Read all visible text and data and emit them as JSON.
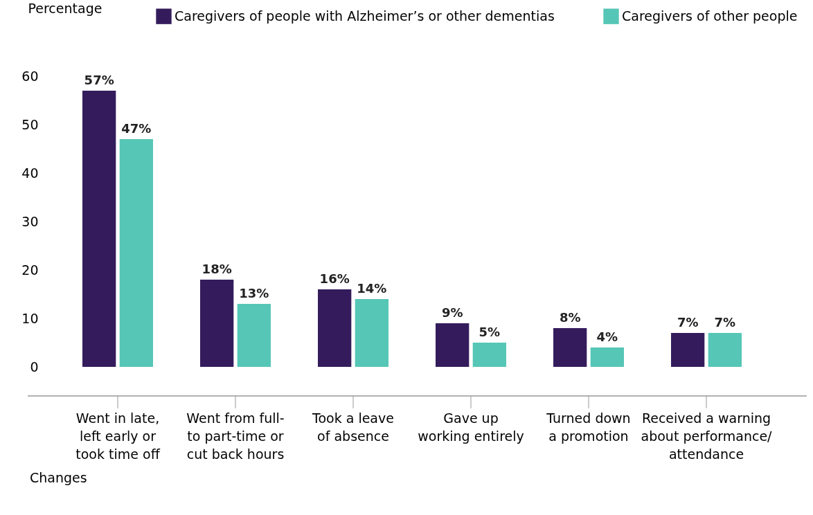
{
  "chart_data": {
    "type": "bar",
    "ylabel": "Percentage",
    "xlabel": "Changes",
    "categories": [
      "Went in late,\nleft early or\ntook time off",
      "Went from full-\nto part-time or\ncut back hours",
      "Took a leave\nof absence",
      "Gave up\nworking entirely",
      "Turned down\na promotion",
      "Received a warning\nabout performance/\nattendance"
    ],
    "series": [
      {
        "name": "Caregivers of people with Alzheimer’s or other dementias",
        "color": "#341c5c",
        "values": [
          57,
          18,
          16,
          9,
          8,
          7
        ],
        "value_labels": [
          "57%",
          "18%",
          "16%",
          "9%",
          "8%",
          "7%"
        ]
      },
      {
        "name": "Caregivers of other people",
        "color": "#56c6b6",
        "values": [
          47,
          13,
          14,
          5,
          4,
          7
        ],
        "value_labels": [
          "47%",
          "13%",
          "14%",
          "5%",
          "4%",
          "7%"
        ]
      }
    ],
    "ylim": [
      0,
      60
    ],
    "yticks": [
      0,
      10,
      20,
      30,
      40,
      50,
      60
    ],
    "grid": false,
    "legend": "top"
  }
}
